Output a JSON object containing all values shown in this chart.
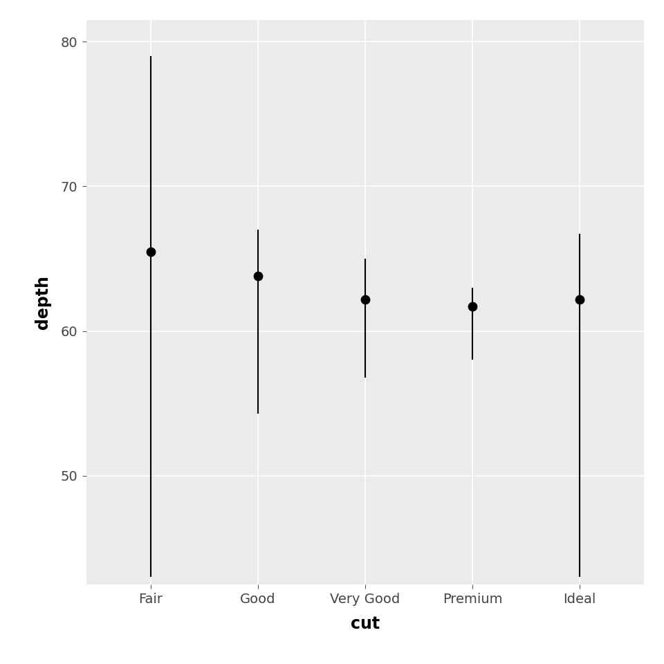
{
  "categories": [
    "Fair",
    "Good",
    "Very Good",
    "Premium",
    "Ideal"
  ],
  "min_vals": [
    43.0,
    54.3,
    56.8,
    58.0,
    43.0
  ],
  "max_vals": [
    79.0,
    67.0,
    65.0,
    63.0,
    66.7
  ],
  "median_vals": [
    65.5,
    63.8,
    62.2,
    61.7,
    62.2
  ],
  "line_color": "#000000",
  "point_color": "#000000",
  "panel_background": "#ebebeb",
  "outer_background": "#ffffff",
  "grid_color": "#ffffff",
  "xlabel": "cut",
  "ylabel": "depth",
  "ylim": [
    42.5,
    81.5
  ],
  "yticks": [
    50,
    60,
    70,
    80
  ],
  "line_width": 1.5,
  "point_size": 80,
  "xlabel_fontsize": 17,
  "ylabel_fontsize": 17,
  "tick_fontsize": 14,
  "tick_label_color": "#444444"
}
